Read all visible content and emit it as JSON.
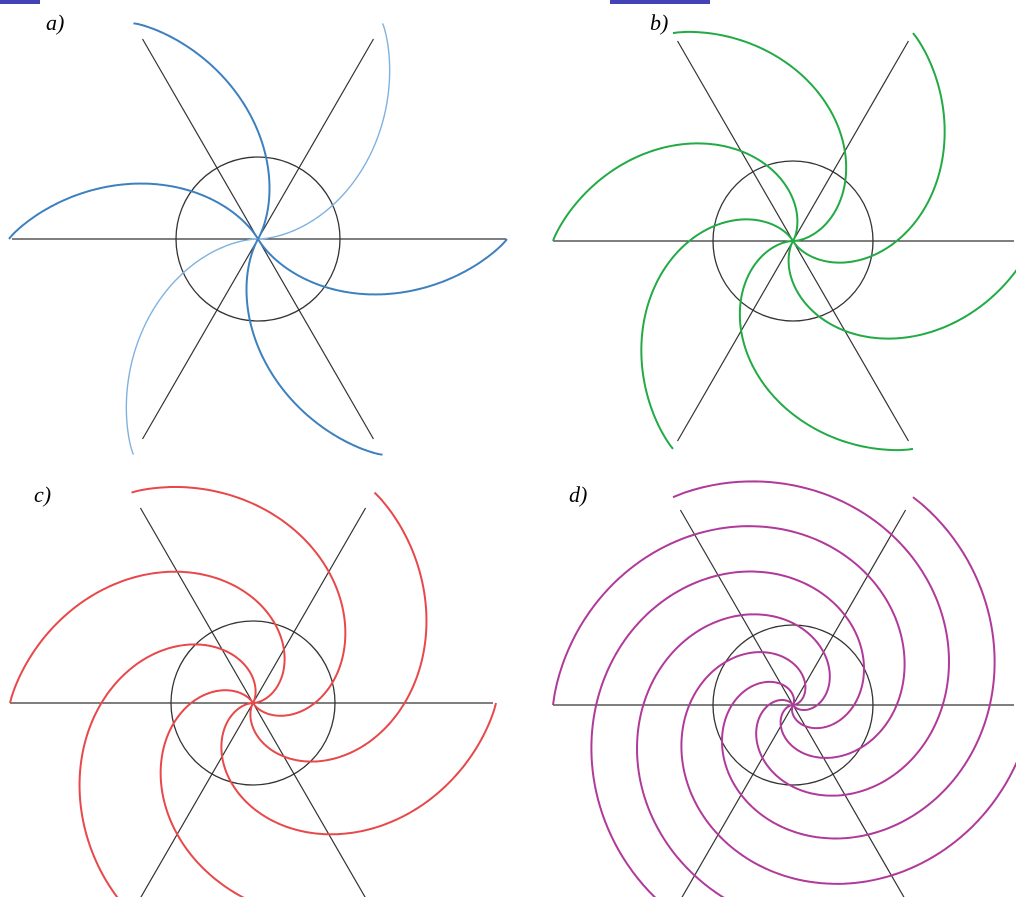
{
  "panels": [
    {
      "id": "a",
      "label": "a)",
      "color": "#3d80c0",
      "color_light": "#7fb2e0",
      "twist": 1
    },
    {
      "id": "b",
      "label": "b)",
      "color": "#22aa44",
      "twist": 2
    },
    {
      "id": "c",
      "label": "c)",
      "color": "#e8484a",
      "twist": 3
    },
    {
      "id": "d",
      "label": "d)",
      "color": "#b03a9a",
      "twist": 6
    }
  ],
  "colors": {
    "axes": "#333333",
    "circle": "#333333",
    "header": "#2222aa"
  }
}
